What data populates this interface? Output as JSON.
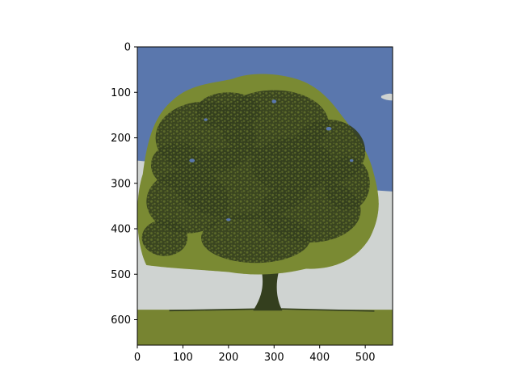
{
  "chart_data": {
    "type": "image",
    "title": "",
    "xlabel": "",
    "ylabel": "",
    "xlim": [
      0,
      560
    ],
    "ylim": [
      656,
      0
    ],
    "x_ticks": [
      0,
      100,
      200,
      300,
      400,
      500
    ],
    "y_ticks": [
      0,
      100,
      200,
      300,
      400,
      500,
      600
    ],
    "grid": false,
    "legend": "none",
    "image_subject": "tree",
    "palette": {
      "sky": "#5a77ad",
      "haze": "#cfd3d1",
      "foliage_light": "#7a8a33",
      "foliage_dark": "#343f1e",
      "ground": "#778431"
    }
  }
}
